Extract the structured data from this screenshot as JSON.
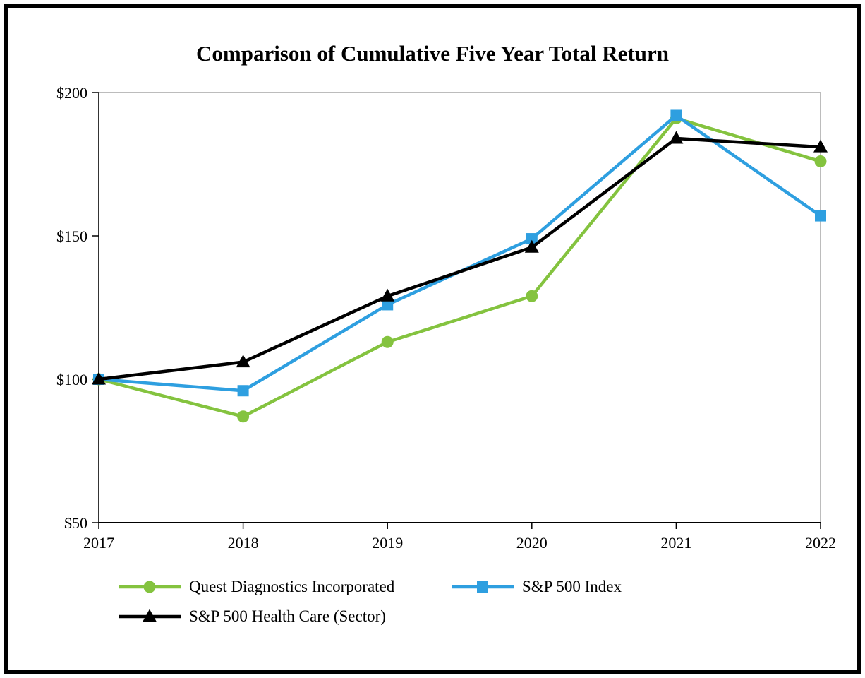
{
  "page": {
    "background": "#ffffff",
    "border_color": "#000000"
  },
  "chart_data": {
    "type": "line",
    "title": "Comparison of Cumulative Five Year Total Return",
    "categories": [
      "2017",
      "2018",
      "2019",
      "2020",
      "2021",
      "2022"
    ],
    "xlabel": "",
    "ylabel": "",
    "ylim": [
      50,
      200
    ],
    "ytick_values": [
      50,
      100,
      150,
      200
    ],
    "ytick_labels": [
      "$50",
      "$100",
      "$150",
      "$200"
    ],
    "grid": false,
    "legend_position": "bottom",
    "axis_color": "#000000",
    "frame_color": "#a6a6a6",
    "series": [
      {
        "name": "Quest Diagnostics Incorporated",
        "color": "#84C33F",
        "marker": "circle",
        "values": [
          100,
          87,
          113,
          129,
          191,
          176
        ]
      },
      {
        "name": "S&P 500 Index",
        "color": "#2E9FE0",
        "marker": "square",
        "values": [
          100,
          96,
          126,
          149,
          192,
          157
        ]
      },
      {
        "name": "S&P 500 Health Care (Sector)",
        "color": "#000000",
        "marker": "triangle",
        "values": [
          100,
          106,
          129,
          146,
          184,
          181
        ]
      }
    ]
  }
}
